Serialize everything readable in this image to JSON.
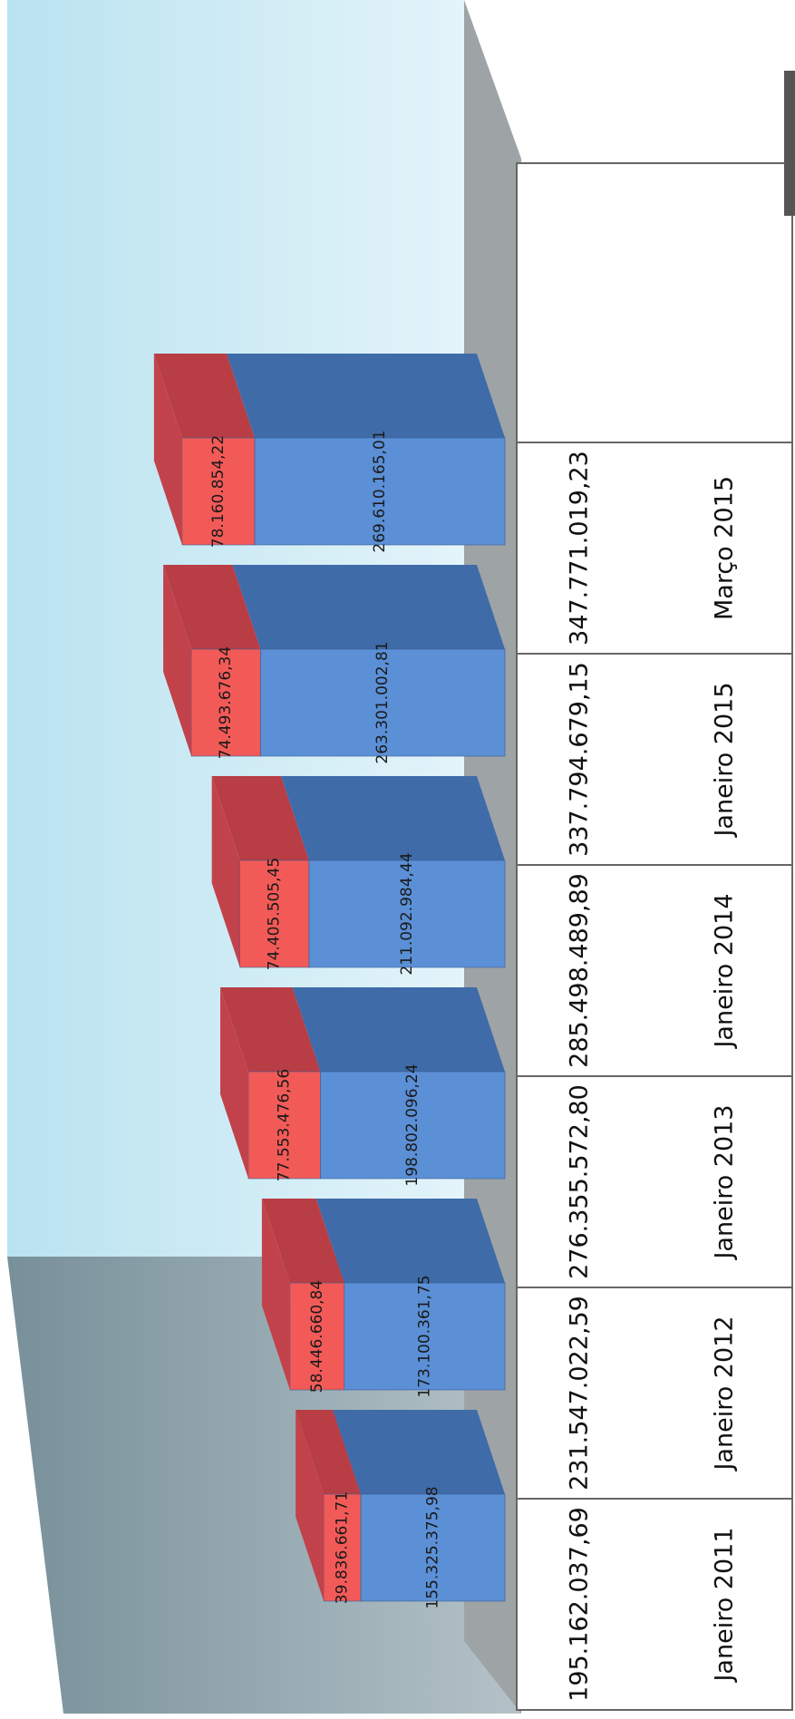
{
  "chart_data": {
    "type": "bar",
    "stacked": true,
    "orientation": "rotated-3d",
    "categories": [
      "Janeiro 2011",
      "Janeiro 2012",
      "Janeiro 2013",
      "Janeiro 2014",
      "Janeiro 2015",
      "Março 2015"
    ],
    "series": [
      {
        "values": [
          155325375.98,
          173100361.75,
          198802096.24,
          211092984.44,
          263301002.81,
          269610165.01
        ],
        "labels": [
          "155.325.375,98",
          "173.100.361,75",
          "198.802.096,24",
          "211.092.984,44",
          "263.301.002,81",
          "269.610.165,01"
        ],
        "color": "#5b8fd6",
        "top_color": "#3f6ba8"
      },
      {
        "values": [
          39836661.71,
          58446660.84,
          77553476.56,
          74405505.45,
          74493676.34,
          78160854.22
        ],
        "labels": [
          "39.836.661,71",
          "58.446.660,84",
          "77.553.476,56",
          "74.405.505,45",
          "74.493.676,34",
          "78.160.854,22"
        ],
        "color": "#f25a58",
        "top_color": "#b83d45"
      }
    ],
    "totals": [
      195162037.69,
      231547022.59,
      276355572.8,
      285498489.89,
      337794679.15,
      347771019.23
    ],
    "total_labels": [
      "195.162.037,69",
      "231.547.022,59",
      "276.355.572,80",
      "285.498.489,89",
      "337.794.679,15",
      "347.771.019,23"
    ],
    "ylim": [
      0,
      420000000
    ],
    "grid": false,
    "legend": "right"
  }
}
